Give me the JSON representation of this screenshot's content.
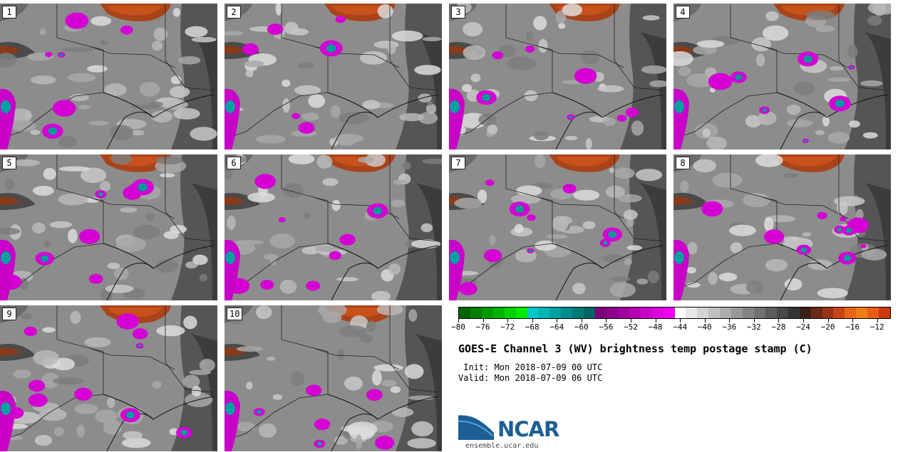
{
  "title": "GOES-E Channel 3 (WV) brightness temp postage stamp (C)",
  "init": " Init: Mon 2018-07-09 00 UTC",
  "valid": "Valid: Mon 2018-07-09 06 UTC",
  "logo": {
    "text": "NCAR",
    "website": "ensemble.ucar.edu"
  },
  "colorbar": {
    "colors": [
      "#006400",
      "#007f00",
      "#009a00",
      "#00b400",
      "#00d000",
      "#00ea00",
      "#00c8c8",
      "#00b4b4",
      "#00a0a0",
      "#008c8c",
      "#007878",
      "#006464",
      "#7a007a",
      "#8c008c",
      "#a000a0",
      "#b400b4",
      "#c800c8",
      "#dc00dc",
      "#f000f0",
      "#ffffff",
      "#e8e8e8",
      "#d4d4d4",
      "#c0c0c0",
      "#acacac",
      "#989898",
      "#848484",
      "#707070",
      "#5c5c5c",
      "#484848",
      "#343434",
      "#3a2016",
      "#6a2a14",
      "#9a3416",
      "#c8441a",
      "#e86414",
      "#f07c14",
      "#e85a16",
      "#cc3a10"
    ],
    "tick_labels": [
      "−80",
      "−76",
      "−72",
      "−68",
      "−64",
      "−60",
      "−56",
      "−52",
      "−48",
      "−44",
      "−40",
      "−36",
      "−32",
      "−28",
      "−24",
      "−20",
      "−16",
      "−12"
    ],
    "range": [
      -80,
      -10
    ]
  },
  "members": [
    {
      "label": "1"
    },
    {
      "label": "2"
    },
    {
      "label": "3"
    },
    {
      "label": "4"
    },
    {
      "label": "5"
    },
    {
      "label": "6"
    },
    {
      "label": "7"
    },
    {
      "label": "8"
    },
    {
      "label": "9"
    },
    {
      "label": "10"
    }
  ]
}
